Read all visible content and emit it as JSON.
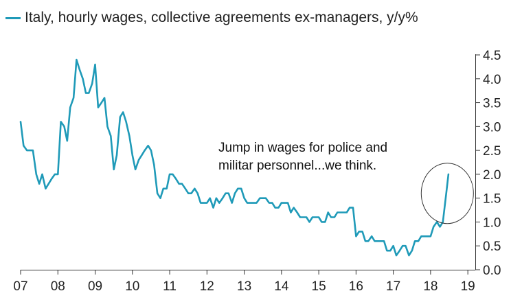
{
  "chart_data": {
    "type": "line",
    "title": "",
    "xlabel": "",
    "ylabel": "",
    "legend_position": "top-left",
    "y_axis_side": "right",
    "grid": false,
    "xlim": [
      2007,
      2019.2
    ],
    "ylim": [
      0,
      4.5
    ],
    "x_tick_labels": [
      "07",
      "08",
      "09",
      "10",
      "11",
      "12",
      "13",
      "14",
      "15",
      "16",
      "17",
      "18",
      "19"
    ],
    "x_tick_values": [
      2007,
      2008,
      2009,
      2010,
      2011,
      2012,
      2013,
      2014,
      2015,
      2016,
      2017,
      2018,
      2019
    ],
    "y_tick_labels": [
      "0.0",
      "0.5",
      "1.0",
      "1.5",
      "2.0",
      "2.5",
      "3.0",
      "3.5",
      "4.0",
      "4.5"
    ],
    "y_tick_values": [
      0,
      0.5,
      1.0,
      1.5,
      2.0,
      2.5,
      3.0,
      3.5,
      4.0,
      4.5
    ],
    "annotation": {
      "lines": [
        "Jump in wages for police and",
        "militar personnel...we think."
      ],
      "circled_point": {
        "x": 2018.45,
        "y": 1.6
      }
    },
    "series": [
      {
        "name": "Italy, hourly wages, collective agreements ex-managers, y/y%",
        "color": "#1f9ab8",
        "x": [
          2007.0,
          2007.08,
          2007.17,
          2007.25,
          2007.33,
          2007.42,
          2007.5,
          2007.58,
          2007.67,
          2007.75,
          2007.83,
          2007.92,
          2008.0,
          2008.08,
          2008.17,
          2008.25,
          2008.33,
          2008.42,
          2008.5,
          2008.58,
          2008.67,
          2008.75,
          2008.83,
          2008.92,
          2009.0,
          2009.08,
          2009.17,
          2009.25,
          2009.33,
          2009.42,
          2009.5,
          2009.58,
          2009.67,
          2009.75,
          2009.83,
          2009.92,
          2010.0,
          2010.08,
          2010.17,
          2010.25,
          2010.33,
          2010.42,
          2010.5,
          2010.58,
          2010.67,
          2010.75,
          2010.83,
          2010.92,
          2011.0,
          2011.08,
          2011.17,
          2011.25,
          2011.33,
          2011.42,
          2011.5,
          2011.58,
          2011.67,
          2011.75,
          2011.83,
          2011.92,
          2012.0,
          2012.08,
          2012.17,
          2012.25,
          2012.33,
          2012.42,
          2012.5,
          2012.58,
          2012.67,
          2012.75,
          2012.83,
          2012.92,
          2013.0,
          2013.08,
          2013.17,
          2013.25,
          2013.33,
          2013.42,
          2013.5,
          2013.58,
          2013.67,
          2013.75,
          2013.83,
          2013.92,
          2014.0,
          2014.08,
          2014.17,
          2014.25,
          2014.33,
          2014.42,
          2014.5,
          2014.58,
          2014.67,
          2014.75,
          2014.83,
          2014.92,
          2015.0,
          2015.08,
          2015.17,
          2015.25,
          2015.33,
          2015.42,
          2015.5,
          2015.58,
          2015.67,
          2015.75,
          2015.83,
          2015.92,
          2016.0,
          2016.08,
          2016.17,
          2016.25,
          2016.33,
          2016.42,
          2016.5,
          2016.58,
          2016.67,
          2016.75,
          2016.83,
          2016.92,
          2017.0,
          2017.08,
          2017.17,
          2017.25,
          2017.33,
          2017.42,
          2017.5,
          2017.58,
          2017.67,
          2017.75,
          2017.83,
          2017.92,
          2018.0,
          2018.08,
          2018.17,
          2018.25,
          2018.33,
          2018.42,
          2018.48
        ],
        "y": [
          3.1,
          2.6,
          2.5,
          2.5,
          2.5,
          2.0,
          1.8,
          2.0,
          1.7,
          1.8,
          1.9,
          2.0,
          2.0,
          3.1,
          3.0,
          2.7,
          3.4,
          3.6,
          4.4,
          4.2,
          4.0,
          3.7,
          3.7,
          3.9,
          4.3,
          3.4,
          3.5,
          3.6,
          3.0,
          2.8,
          2.1,
          2.4,
          3.2,
          3.3,
          3.1,
          2.8,
          2.4,
          2.1,
          2.3,
          2.4,
          2.5,
          2.6,
          2.5,
          2.2,
          1.6,
          1.5,
          1.7,
          1.7,
          2.0,
          2.0,
          1.9,
          1.8,
          1.8,
          1.7,
          1.6,
          1.6,
          1.7,
          1.6,
          1.4,
          1.4,
          1.4,
          1.5,
          1.3,
          1.5,
          1.4,
          1.5,
          1.6,
          1.6,
          1.4,
          1.6,
          1.7,
          1.7,
          1.5,
          1.4,
          1.4,
          1.4,
          1.4,
          1.5,
          1.5,
          1.5,
          1.4,
          1.4,
          1.3,
          1.3,
          1.4,
          1.4,
          1.4,
          1.2,
          1.3,
          1.2,
          1.1,
          1.1,
          1.1,
          1.0,
          1.1,
          1.1,
          1.1,
          1.0,
          1.0,
          1.2,
          1.1,
          1.1,
          1.2,
          1.2,
          1.2,
          1.2,
          1.3,
          1.3,
          0.7,
          0.8,
          0.8,
          0.6,
          0.6,
          0.7,
          0.6,
          0.6,
          0.6,
          0.6,
          0.4,
          0.4,
          0.5,
          0.3,
          0.4,
          0.5,
          0.5,
          0.3,
          0.4,
          0.6,
          0.6,
          0.7,
          0.7,
          0.7,
          0.7,
          0.9,
          1.0,
          0.9,
          1.0,
          1.6,
          2.0
        ]
      }
    ]
  }
}
